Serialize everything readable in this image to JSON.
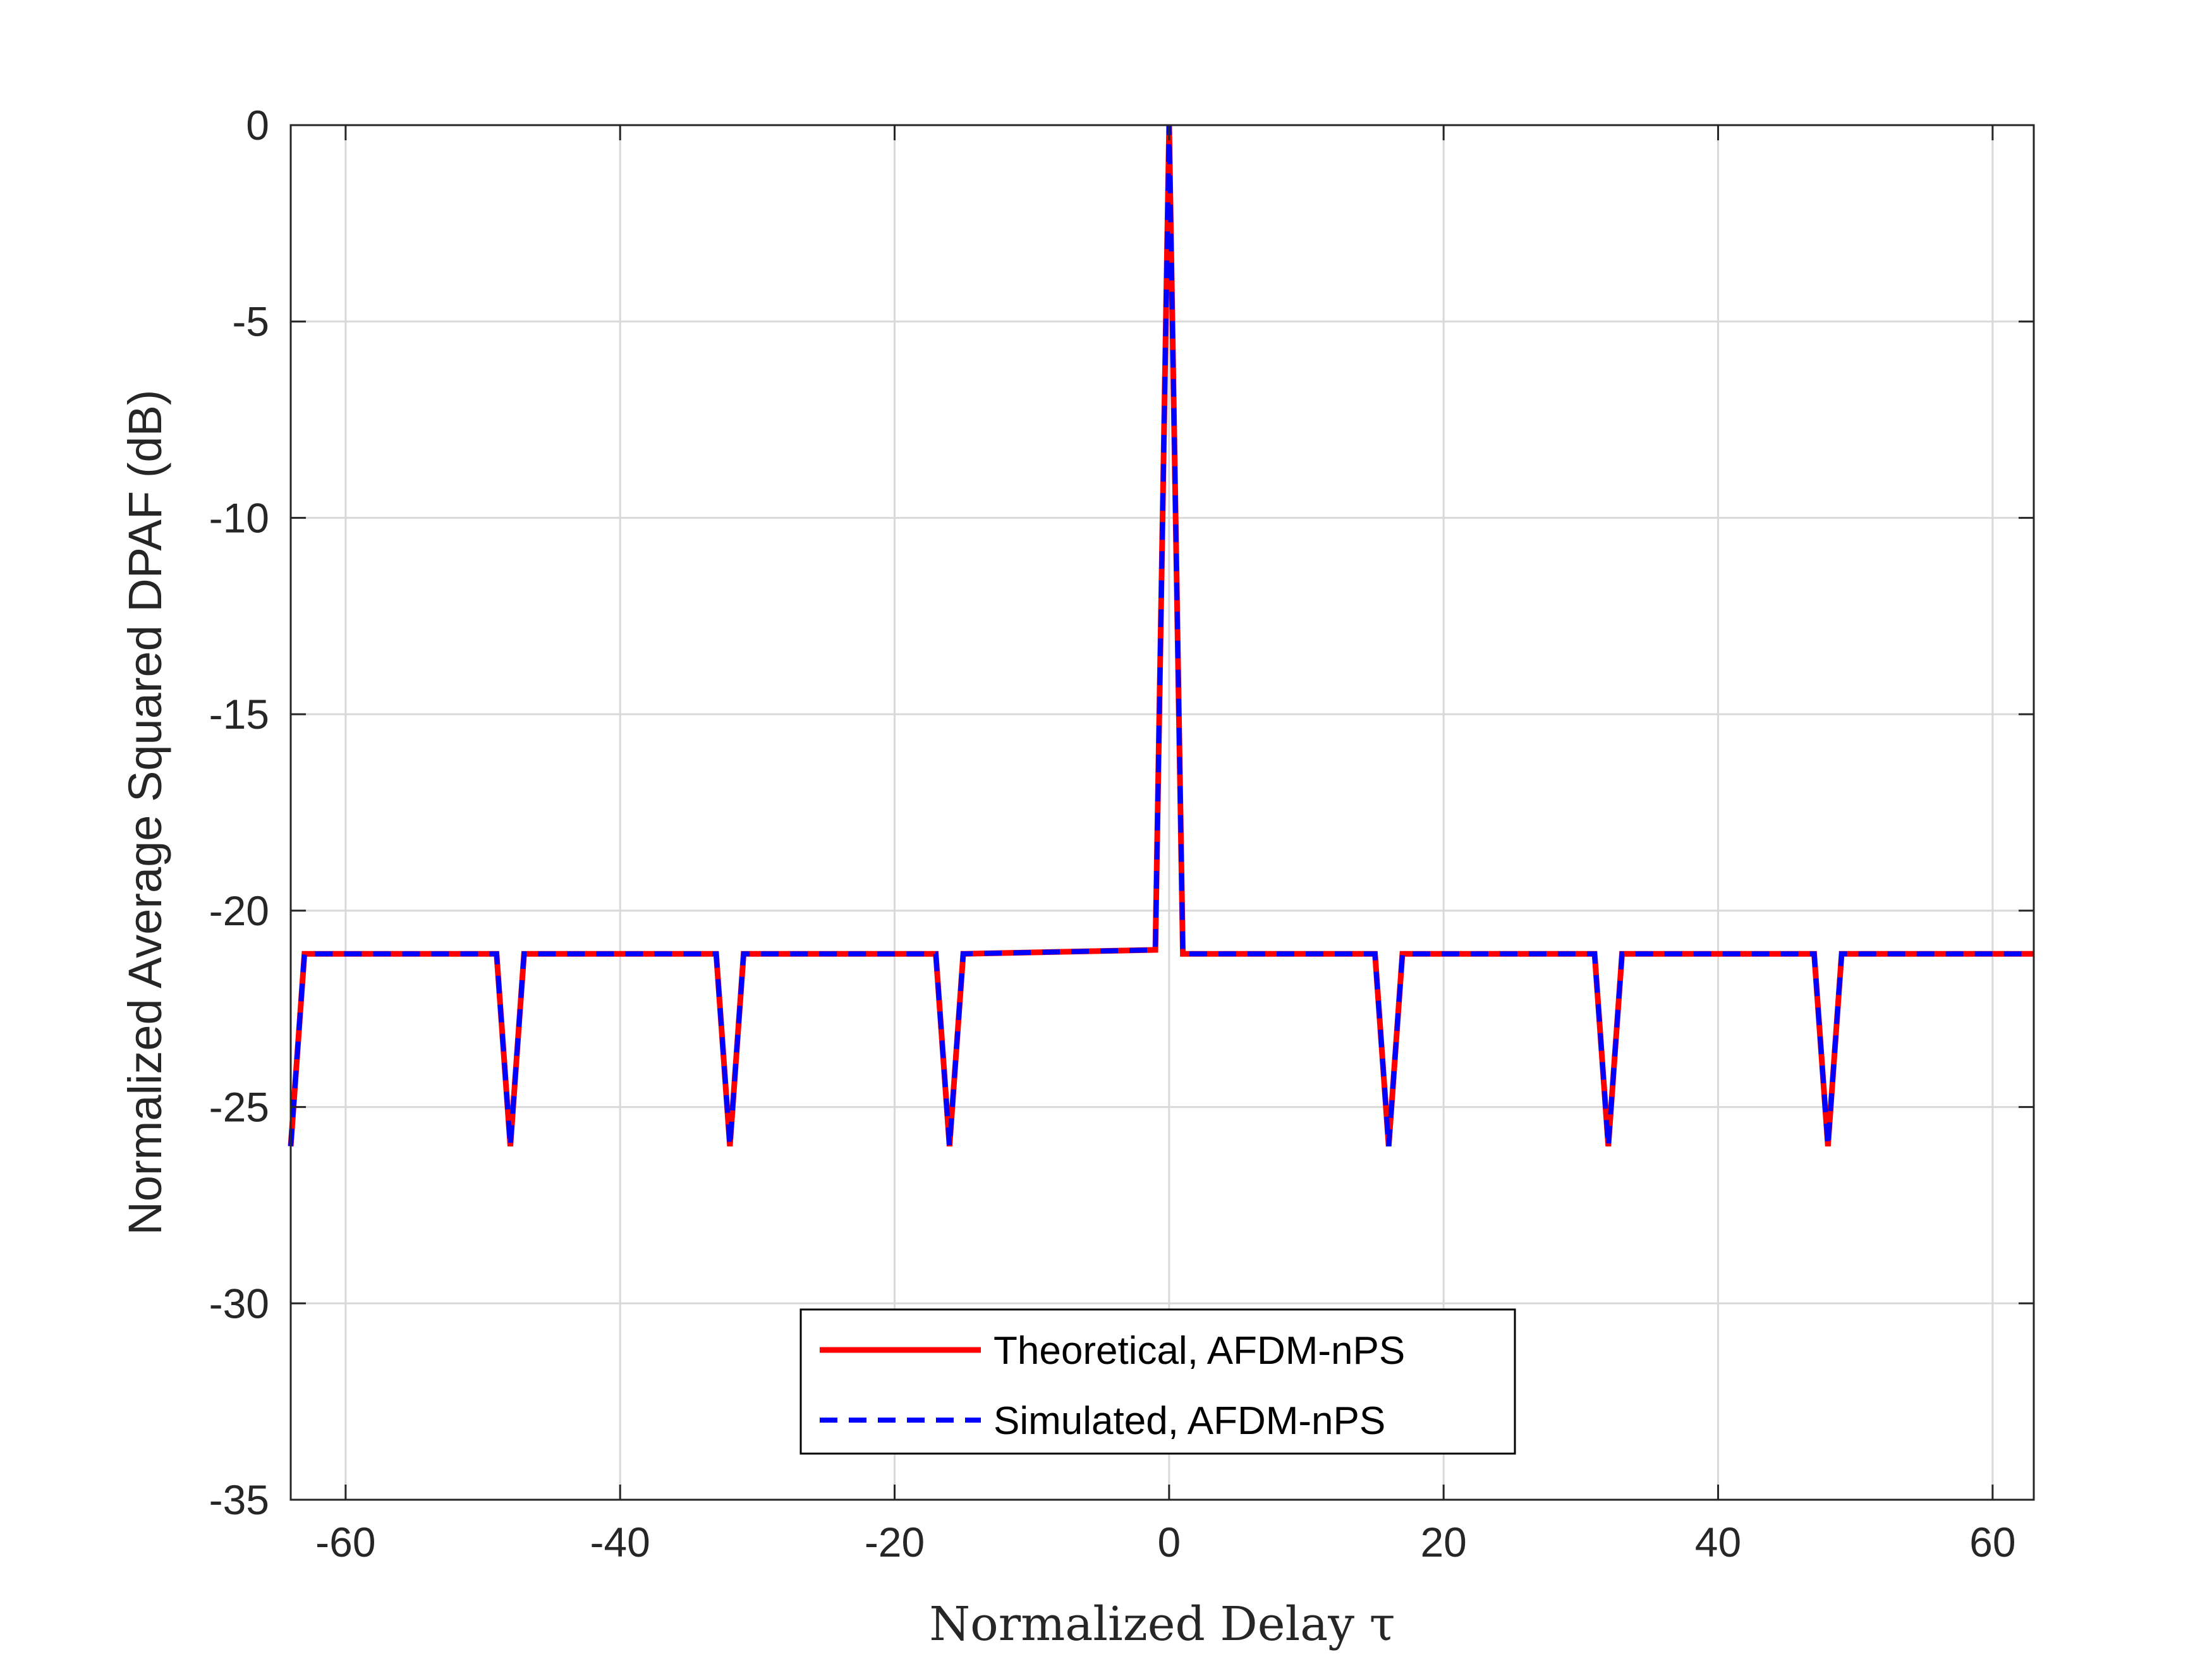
{
  "chart_data": {
    "type": "line",
    "title": "",
    "xlabel": "Normalized Delay τ",
    "ylabel": "Normalized Average Squared DPAF (dB)",
    "xlim": [
      -64,
      63
    ],
    "ylim": [
      -35,
      0
    ],
    "xticks": [
      -60,
      -40,
      -20,
      0,
      20,
      40,
      60
    ],
    "yticks": [
      0,
      -5,
      -10,
      -15,
      -20,
      -25,
      -30,
      -35
    ],
    "grid": true,
    "legend_position": "bottom-center",
    "x": [
      -64,
      -63,
      -62,
      -49,
      -48,
      -47,
      -33,
      -32,
      -31,
      -17,
      -16,
      -15,
      -1,
      0,
      1,
      15,
      16,
      17,
      31,
      32,
      33,
      47,
      48,
      49,
      63
    ],
    "series": [
      {
        "name": "Theoretical, AFDM-nPS",
        "color": "#ff0000",
        "style": "solid",
        "values": [
          -26,
          -21.1,
          -21.1,
          -21.1,
          -26,
          -21.1,
          -21.1,
          -26,
          -21.1,
          -21.1,
          -26,
          -21.1,
          -21.0,
          0,
          -21.1,
          -21.1,
          -26,
          -21.1,
          -21.1,
          -26,
          -21.1,
          -21.1,
          -26,
          -21.1,
          -21.1
        ]
      },
      {
        "name": "Simulated, AFDM-nPS",
        "color": "#0000ff",
        "style": "dashed",
        "values": [
          -26,
          -21.1,
          -21.1,
          -21.1,
          -26,
          -21.1,
          -21.1,
          -26,
          -21.1,
          -21.1,
          -26,
          -21.1,
          -21.0,
          0,
          -21.1,
          -21.1,
          -26,
          -21.1,
          -21.1,
          -26,
          -21.1,
          -21.1,
          -26,
          -21.1,
          -21.1
        ]
      }
    ]
  }
}
